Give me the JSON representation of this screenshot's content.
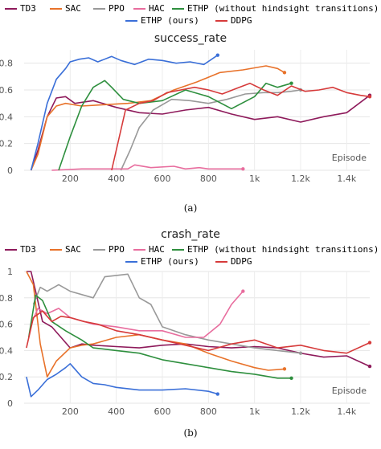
{
  "chart_data": [
    {
      "type": "line",
      "title": "success_rate",
      "xlabel": "Episode",
      "xlim": [
        0,
        1500
      ],
      "ylim": [
        0,
        0.9
      ],
      "x_ticks": [
        200,
        400,
        600,
        800,
        1000,
        1200,
        1400
      ],
      "x_tick_labels": [
        "200",
        "400",
        "600",
        "800",
        "1k",
        "1.2k",
        "1.4k"
      ],
      "y_ticks": [
        0,
        0.2,
        0.4,
        0.6,
        0.8
      ],
      "y_tick_labels": [
        "0",
        "0.2",
        "0.4",
        "0.6",
        "0.8"
      ],
      "grid": true,
      "legend_position": "top",
      "caption": "(a)",
      "series": [
        {
          "name": "TD3",
          "color": "#8e1a5b",
          "x": [
            30,
            60,
            100,
            140,
            180,
            220,
            300,
            400,
            500,
            600,
            700,
            800,
            900,
            1000,
            1100,
            1200,
            1300,
            1400,
            1500
          ],
          "y": [
            0,
            0.15,
            0.4,
            0.54,
            0.55,
            0.5,
            0.52,
            0.47,
            0.43,
            0.42,
            0.45,
            0.47,
            0.42,
            0.38,
            0.4,
            0.36,
            0.4,
            0.43,
            0.56
          ]
        },
        {
          "name": "SAC",
          "color": "#e8722a",
          "x": [
            30,
            60,
            100,
            140,
            180,
            250,
            350,
            450,
            550,
            650,
            750,
            850,
            950,
            1050,
            1100,
            1130
          ],
          "y": [
            0,
            0.12,
            0.4,
            0.48,
            0.5,
            0.48,
            0.49,
            0.5,
            0.52,
            0.6,
            0.66,
            0.73,
            0.75,
            0.78,
            0.76,
            0.73
          ]
        },
        {
          "name": "PPO",
          "color": "#999999",
          "x": [
            420,
            460,
            500,
            560,
            640,
            720,
            800,
            880,
            960,
            1040,
            1100,
            1160,
            1200
          ],
          "y": [
            0,
            0.15,
            0.32,
            0.45,
            0.53,
            0.52,
            0.5,
            0.53,
            0.57,
            0.58,
            0.58,
            0.59,
            0.6
          ]
        },
        {
          "name": "HAC",
          "color": "#e86d9e",
          "x": [
            120,
            250,
            350,
            450,
            480,
            550,
            650,
            700,
            760,
            800,
            840,
            950
          ],
          "y": [
            0,
            0.01,
            0.01,
            0.01,
            0.04,
            0.02,
            0.03,
            0.01,
            0.02,
            0.01,
            0.01,
            0.01
          ]
        },
        {
          "name": "ETHP (without hindsight transitions)",
          "color": "#2e8f3e",
          "x": [
            150,
            200,
            250,
            300,
            350,
            380,
            430,
            500,
            600,
            700,
            800,
            900,
            1000,
            1050,
            1100,
            1160
          ],
          "y": [
            0,
            0.25,
            0.48,
            0.62,
            0.67,
            0.62,
            0.53,
            0.5,
            0.52,
            0.6,
            0.55,
            0.46,
            0.55,
            0.65,
            0.62,
            0.65
          ]
        },
        {
          "name": "ETHP (ours)",
          "color": "#3a6fd8",
          "x": [
            30,
            60,
            100,
            140,
            180,
            200,
            240,
            280,
            320,
            380,
            420,
            480,
            540,
            600,
            660,
            720,
            780,
            840
          ],
          "y": [
            0,
            0.2,
            0.5,
            0.68,
            0.76,
            0.81,
            0.83,
            0.84,
            0.81,
            0.85,
            0.82,
            0.79,
            0.83,
            0.82,
            0.8,
            0.81,
            0.79,
            0.86
          ]
        },
        {
          "name": "DDPG",
          "color": "#d63a3a",
          "x": [
            380,
            440,
            500,
            560,
            620,
            680,
            740,
            800,
            860,
            920,
            980,
            1040,
            1100,
            1160,
            1220,
            1280,
            1340,
            1400,
            1460,
            1500
          ],
          "y": [
            0,
            0.45,
            0.5,
            0.52,
            0.58,
            0.6,
            0.62,
            0.6,
            0.57,
            0.61,
            0.65,
            0.6,
            0.56,
            0.63,
            0.59,
            0.6,
            0.62,
            0.58,
            0.56,
            0.55
          ]
        }
      ]
    },
    {
      "type": "line",
      "title": "crash_rate",
      "xlabel": "Episode",
      "xlim": [
        0,
        1500
      ],
      "ylim": [
        0,
        1.0
      ],
      "x_ticks": [
        200,
        400,
        600,
        800,
        1000,
        1200,
        1400
      ],
      "x_tick_labels": [
        "200",
        "400",
        "600",
        "800",
        "1k",
        "1.2k",
        "1.4k"
      ],
      "y_ticks": [
        0,
        0.2,
        0.4,
        0.6,
        0.8,
        1
      ],
      "y_tick_labels": [
        "0",
        "0.2",
        "0.4",
        "0.6",
        "0.8",
        "1"
      ],
      "grid": true,
      "legend_position": "top",
      "caption": "(b)",
      "series": [
        {
          "name": "TD3",
          "color": "#8e1a5b",
          "x": [
            10,
            30,
            50,
            80,
            120,
            160,
            200,
            250,
            300,
            400,
            500,
            600,
            700,
            800,
            900,
            1000,
            1100,
            1200,
            1300,
            1400,
            1500
          ],
          "y": [
            1.0,
            1.0,
            0.85,
            0.62,
            0.58,
            0.5,
            0.42,
            0.45,
            0.44,
            0.43,
            0.42,
            0.44,
            0.45,
            0.43,
            0.42,
            0.43,
            0.42,
            0.38,
            0.35,
            0.36,
            0.28
          ]
        },
        {
          "name": "SAC",
          "color": "#e8722a",
          "x": [
            10,
            40,
            70,
            100,
            140,
            200,
            250,
            300,
            400,
            500,
            600,
            700,
            800,
            900,
            1000,
            1060,
            1130
          ],
          "y": [
            1.0,
            0.9,
            0.45,
            0.2,
            0.32,
            0.42,
            0.44,
            0.45,
            0.5,
            0.52,
            0.48,
            0.45,
            0.38,
            0.32,
            0.27,
            0.25,
            0.26
          ]
        },
        {
          "name": "PPO",
          "color": "#999999",
          "x": [
            40,
            70,
            100,
            150,
            200,
            300,
            350,
            400,
            450,
            500,
            550,
            600,
            700,
            800,
            900,
            1000,
            1100,
            1200
          ],
          "y": [
            0.75,
            0.88,
            0.85,
            0.9,
            0.85,
            0.8,
            0.96,
            0.97,
            0.98,
            0.8,
            0.75,
            0.58,
            0.52,
            0.48,
            0.45,
            0.42,
            0.4,
            0.38
          ]
        },
        {
          "name": "HAC",
          "color": "#e86d9e",
          "x": [
            30,
            60,
            100,
            150,
            200,
            300,
            400,
            500,
            600,
            700,
            780,
            850,
            900,
            950
          ],
          "y": [
            0.6,
            0.72,
            0.68,
            0.72,
            0.65,
            0.6,
            0.58,
            0.55,
            0.55,
            0.5,
            0.5,
            0.6,
            0.75,
            0.85
          ]
        },
        {
          "name": "ETHP (without hindsight transitions)",
          "color": "#2e8f3e",
          "x": [
            20,
            50,
            80,
            120,
            180,
            250,
            300,
            400,
            500,
            600,
            700,
            800,
            900,
            1000,
            1100,
            1160
          ],
          "y": [
            0.5,
            0.82,
            0.78,
            0.62,
            0.55,
            0.48,
            0.42,
            0.4,
            0.38,
            0.33,
            0.3,
            0.27,
            0.24,
            0.22,
            0.19,
            0.19
          ]
        },
        {
          "name": "ETHP (ours)",
          "color": "#3a6fd8",
          "x": [
            10,
            30,
            60,
            100,
            140,
            180,
            200,
            250,
            300,
            350,
            400,
            500,
            600,
            700,
            800,
            840
          ],
          "y": [
            0.2,
            0.05,
            0.1,
            0.18,
            0.22,
            0.27,
            0.3,
            0.2,
            0.15,
            0.14,
            0.12,
            0.1,
            0.1,
            0.11,
            0.09,
            0.07
          ]
        },
        {
          "name": "DDPG",
          "color": "#d63a3a",
          "x": [
            10,
            40,
            80,
            120,
            160,
            200,
            260,
            320,
            400,
            500,
            600,
            700,
            800,
            900,
            1000,
            1100,
            1200,
            1300,
            1400,
            1500
          ],
          "y": [
            0.42,
            0.65,
            0.7,
            0.62,
            0.66,
            0.65,
            0.62,
            0.6,
            0.55,
            0.52,
            0.48,
            0.44,
            0.4,
            0.45,
            0.48,
            0.42,
            0.44,
            0.4,
            0.38,
            0.46
          ]
        }
      ]
    }
  ]
}
